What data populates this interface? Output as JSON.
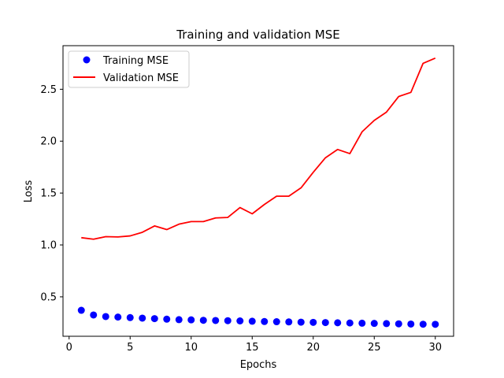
{
  "chart_data": {
    "type": "line",
    "title": "Training and validation MSE",
    "xlabel": "Epochs",
    "ylabel": "Loss",
    "xlim": [
      -0.5,
      31.5
    ],
    "ylim": [
      0.12,
      2.92
    ],
    "xticks": [
      0,
      5,
      10,
      15,
      20,
      25,
      30
    ],
    "yticks": [
      0.5,
      1.0,
      1.5,
      2.0,
      2.5
    ],
    "ytick_labels": [
      "0.5",
      "1.0",
      "1.5",
      "2.0",
      "2.5"
    ],
    "grid": false,
    "legend_position": "upper left",
    "x": [
      1,
      2,
      3,
      4,
      5,
      6,
      7,
      8,
      9,
      10,
      11,
      12,
      13,
      14,
      15,
      16,
      17,
      18,
      19,
      20,
      21,
      22,
      23,
      24,
      25,
      26,
      27,
      28,
      29,
      30
    ],
    "series": [
      {
        "name": "Training MSE",
        "style": "markers",
        "color": "#0000ff",
        "values": [
          0.37,
          0.325,
          0.31,
          0.305,
          0.3,
          0.295,
          0.29,
          0.285,
          0.28,
          0.278,
          0.274,
          0.272,
          0.27,
          0.268,
          0.265,
          0.262,
          0.26,
          0.258,
          0.256,
          0.254,
          0.252,
          0.25,
          0.248,
          0.246,
          0.244,
          0.242,
          0.24,
          0.238,
          0.236,
          0.235
        ]
      },
      {
        "name": "Validation MSE",
        "style": "line",
        "color": "#ff0000",
        "values": [
          1.07,
          1.055,
          1.08,
          1.077,
          1.087,
          1.122,
          1.183,
          1.148,
          1.2,
          1.225,
          1.225,
          1.26,
          1.265,
          1.36,
          1.3,
          1.39,
          1.47,
          1.47,
          1.55,
          1.7,
          1.84,
          1.92,
          1.88,
          2.09,
          2.2,
          2.28,
          2.43,
          2.47,
          2.75,
          2.8
        ]
      }
    ]
  }
}
